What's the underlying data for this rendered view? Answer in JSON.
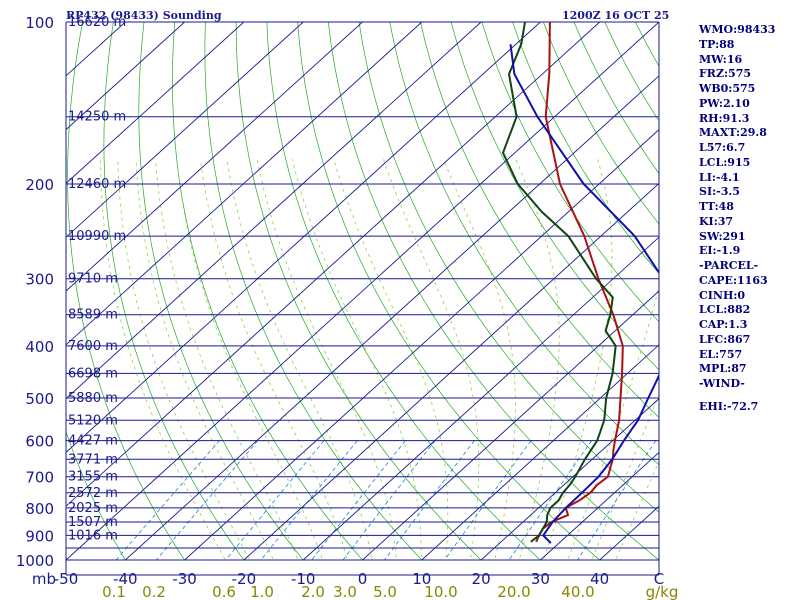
{
  "header": {
    "station": "RP432 (98433) Sounding",
    "time": "1200Z 16 OCT 25"
  },
  "indices": [
    "WMO:98433",
    "TP:88",
    "MW:16",
    "FRZ:575",
    "WB0:575",
    "PW:2.10",
    "RH:91.3",
    "MAXT:29.8",
    "L57:6.7",
    "LCL:915",
    "LI:-4.1",
    "SI:-3.5",
    "TT:48",
    "KI:37",
    "SW:291",
    "EI:-1.9",
    "-PARCEL-",
    "CAPE:1163",
    "CINH:0",
    "LCL:882",
    "CAP:1.3",
    "LFC:867",
    "EL:757",
    "MPL:87",
    "-WIND-",
    "EHI:-72.7"
  ],
  "colors": {
    "isobar": "#1a1a8c",
    "isotherm": "#1a1a8c",
    "dry_adiabat": "#22aa22",
    "moist_adiabat": "#99cc44",
    "mixing_ratio": "#1188cc",
    "temperature": "#aa1111",
    "dewpoint": "#114411",
    "parcel": "#1111aa",
    "axis_text": "#1a1a8c",
    "mixing_text": "#888800"
  },
  "chart_data": {
    "type": "line",
    "title": "RP432 (98433) Sounding",
    "subtitle": "1200Z 16 OCT 25",
    "xlabel": "C",
    "ylabel": "mb",
    "xlim": [
      -50,
      50
    ],
    "ylim": [
      1000,
      100
    ],
    "x_ticks": [
      "-50",
      "-40",
      "-30",
      "-20",
      "-10",
      "0",
      "10",
      "20",
      "30",
      "40",
      "C"
    ],
    "pressure_ticks": [
      100,
      200,
      300,
      400,
      500,
      600,
      700,
      800,
      900,
      1000
    ],
    "pressure_axis_label": "mb",
    "height_levels": [
      {
        "p": 100,
        "label": "16620 m"
      },
      {
        "p": 150,
        "label": "14250 m"
      },
      {
        "p": 200,
        "label": "12460 m"
      },
      {
        "p": 250,
        "label": "10990 m"
      },
      {
        "p": 300,
        "label": "9710 m"
      },
      {
        "p": 350,
        "label": "8589 m"
      },
      {
        "p": 400,
        "label": "7600 m"
      },
      {
        "p": 450,
        "label": "6698 m"
      },
      {
        "p": 500,
        "label": "5880 m"
      },
      {
        "p": 550,
        "label": "5120 m"
      },
      {
        "p": 600,
        "label": "4427 m"
      },
      {
        "p": 650,
        "label": "3771 m"
      },
      {
        "p": 700,
        "label": "3155 m"
      },
      {
        "p": 750,
        "label": "2572 m"
      },
      {
        "p": 800,
        "label": "2025 m"
      },
      {
        "p": 850,
        "label": "1507 m"
      },
      {
        "p": 900,
        "label": "1016 m"
      }
    ],
    "isotherm_range": [
      -150,
      50
    ],
    "mixing_ratio_labels": [
      "0.1",
      "0.2",
      "0.6",
      "1.0",
      "2.0",
      "3.0",
      "5.0",
      "10.0",
      "20.0",
      "40.0",
      "g/kg"
    ],
    "series": [
      {
        "name": "Temperature",
        "points": [
          [
            925,
            25.9
          ],
          [
            900,
            25.2
          ],
          [
            875,
            24.6
          ],
          [
            850,
            24.8
          ],
          [
            825,
            26.3
          ],
          [
            800,
            24.6
          ],
          [
            775,
            25.5
          ],
          [
            750,
            25.9
          ],
          [
            725,
            25.6
          ],
          [
            700,
            25.9
          ],
          [
            675,
            24.7
          ],
          [
            650,
            23.5
          ],
          [
            625,
            21.9
          ],
          [
            600,
            20.4
          ],
          [
            550,
            17.3
          ],
          [
            500,
            13.4
          ],
          [
            450,
            9.1
          ],
          [
            400,
            4.1
          ],
          [
            350,
            -3.3
          ],
          [
            300,
            -12.5
          ],
          [
            250,
            -22.8
          ],
          [
            200,
            -36.6
          ],
          [
            150,
            -51.5
          ],
          [
            125,
            -58.8
          ],
          [
            100,
            -68.4
          ]
        ]
      },
      {
        "name": "Dewpoint",
        "points": [
          [
            925,
            25.0
          ],
          [
            900,
            25.2
          ],
          [
            875,
            24.6
          ],
          [
            850,
            24.0
          ],
          [
            825,
            22.8
          ],
          [
            800,
            22.0
          ],
          [
            775,
            22.0
          ],
          [
            750,
            21.3
          ],
          [
            725,
            21.0
          ],
          [
            700,
            20.4
          ],
          [
            650,
            18.8
          ],
          [
            600,
            17.4
          ],
          [
            550,
            14.8
          ],
          [
            500,
            11.0
          ],
          [
            450,
            7.5
          ],
          [
            400,
            2.9
          ],
          [
            375,
            -1.6
          ],
          [
            350,
            -3.8
          ],
          [
            325,
            -6.6
          ],
          [
            300,
            -12.9
          ],
          [
            250,
            -25.5
          ],
          [
            225,
            -34.6
          ],
          [
            200,
            -43.7
          ],
          [
            175,
            -52.0
          ],
          [
            150,
            -56.4
          ],
          [
            125,
            -65.6
          ],
          [
            110,
            -69.1
          ],
          [
            100,
            -72.6
          ]
        ]
      },
      {
        "name": "Parcel",
        "points": [
          [
            930,
            28.6
          ],
          [
            900,
            25.9
          ],
          [
            850,
            25.0
          ],
          [
            800,
            24.6
          ],
          [
            750,
            24.5
          ],
          [
            700,
            24.3
          ],
          [
            650,
            23.4
          ],
          [
            600,
            21.9
          ],
          [
            550,
            20.5
          ],
          [
            500,
            18.1
          ],
          [
            450,
            15.5
          ],
          [
            400,
            11.5
          ],
          [
            350,
            6.4
          ],
          [
            300,
            -1.6
          ],
          [
            250,
            -14.3
          ],
          [
            200,
            -32.6
          ],
          [
            150,
            -52.9
          ],
          [
            125,
            -64.7
          ],
          [
            110,
            -70.9
          ]
        ]
      }
    ]
  }
}
